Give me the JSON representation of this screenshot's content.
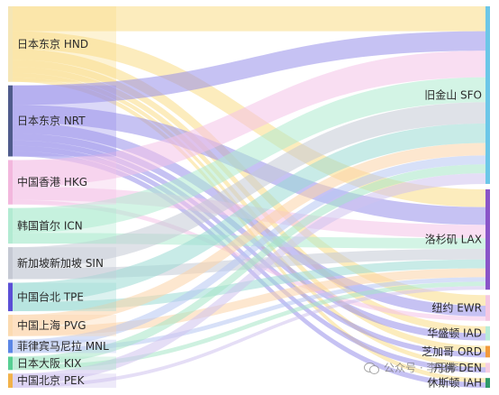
{
  "chart_data": {
    "type": "sankey",
    "sources": [
      {
        "id": "HND",
        "label": "日本东京 HND",
        "color": "#f9dc86",
        "bar": "#f5e6b5"
      },
      {
        "id": "NRT",
        "label": "日本东京 NRT",
        "color": "#9890ea",
        "bar": "#4f5b8c"
      },
      {
        "id": "HKG",
        "label": "中国香港 HKG",
        "color": "#f4c2e7",
        "bar": "#f2b7dd"
      },
      {
        "id": "ICN",
        "label": "韩国首尔 ICN",
        "color": "#aeebd0",
        "bar": "#b2ebd2"
      },
      {
        "id": "SIN",
        "label": "新加坡新加坡 SIN",
        "color": "#c5cad6",
        "bar": "#c5c9d3"
      },
      {
        "id": "TPE",
        "label": "中国台北 TPE",
        "color": "#9adbd3",
        "bar": "#5b4fd6"
      },
      {
        "id": "PVG",
        "label": "中国上海 PVG",
        "color": "#fbd3a8",
        "bar": "#fbdab0"
      },
      {
        "id": "MNL",
        "label": "菲律宾马尼拉 MNL",
        "color": "#b6c7f2",
        "bar": "#5b86e6"
      },
      {
        "id": "KIX",
        "label": "日本大阪 KIX",
        "color": "#a6e6c6",
        "bar": "#57cf93"
      },
      {
        "id": "PEK",
        "label": "中国北京 PEK",
        "color": "#cfc2ee",
        "bar": "#f2b24a"
      }
    ],
    "targets": [
      {
        "id": "SFO",
        "label": "旧金山 SFO",
        "bar": "#6cc7e8"
      },
      {
        "id": "LAX",
        "label": "洛杉矶 LAX",
        "bar": "#8a55c8"
      },
      {
        "id": "EWR",
        "label": "纽约 EWR",
        "bar": "#f5c8e2"
      },
      {
        "id": "IAD",
        "label": "华盛顿 IAD",
        "bar": "#b8ecd8"
      },
      {
        "id": "ORD",
        "label": "芝加哥 ORD",
        "bar": "#f29a3c"
      },
      {
        "id": "DEN",
        "label": "丹佛 DEN",
        "bar": "#f6cfe3"
      },
      {
        "id": "IAH",
        "label": "休斯顿 IAH",
        "bar": "#2f9a6a"
      }
    ],
    "links": [
      {
        "source": "HND",
        "target": "SFO",
        "value": 28
      },
      {
        "source": "HND",
        "target": "LAX",
        "value": 20
      },
      {
        "source": "HND",
        "target": "EWR",
        "value": 12
      },
      {
        "source": "HND",
        "target": "IAD",
        "value": 8
      },
      {
        "source": "HND",
        "target": "ORD",
        "value": 7
      },
      {
        "source": "HND",
        "target": "DEN",
        "value": 5
      },
      {
        "source": "HND",
        "target": "IAH",
        "value": 5
      },
      {
        "source": "NRT",
        "target": "SFO",
        "value": 22
      },
      {
        "source": "NRT",
        "target": "LAX",
        "value": 20
      },
      {
        "source": "NRT",
        "target": "EWR",
        "value": 12
      },
      {
        "source": "NRT",
        "target": "IAD",
        "value": 8
      },
      {
        "source": "NRT",
        "target": "ORD",
        "value": 6
      },
      {
        "source": "NRT",
        "target": "DEN",
        "value": 6
      },
      {
        "source": "NRT",
        "target": "IAH",
        "value": 6
      },
      {
        "source": "HKG",
        "target": "SFO",
        "value": 30
      },
      {
        "source": "HKG",
        "target": "LAX",
        "value": 15
      },
      {
        "source": "HKG",
        "target": "EWR",
        "value": 5
      },
      {
        "source": "ICN",
        "target": "SFO",
        "value": 28
      },
      {
        "source": "ICN",
        "target": "LAX",
        "value": 12
      },
      {
        "source": "SIN",
        "target": "SFO",
        "value": 24
      },
      {
        "source": "SIN",
        "target": "LAX",
        "value": 12
      },
      {
        "source": "TPE",
        "target": "SFO",
        "value": 22
      },
      {
        "source": "TPE",
        "target": "LAX",
        "value": 10
      },
      {
        "source": "PVG",
        "target": "SFO",
        "value": 14
      },
      {
        "source": "PVG",
        "target": "LAX",
        "value": 10
      },
      {
        "source": "MNL",
        "target": "SFO",
        "value": 10
      },
      {
        "source": "MNL",
        "target": "LAX",
        "value": 5
      },
      {
        "source": "KIX",
        "target": "SFO",
        "value": 10
      },
      {
        "source": "KIX",
        "target": "LAX",
        "value": 5
      },
      {
        "source": "PEK",
        "target": "SFO",
        "value": 12
      },
      {
        "source": "PEK",
        "target": "LAX",
        "value": 4
      }
    ]
  },
  "watermark": {
    "text": "公众号 · 李没李",
    "icon": "wechat-icon"
  }
}
